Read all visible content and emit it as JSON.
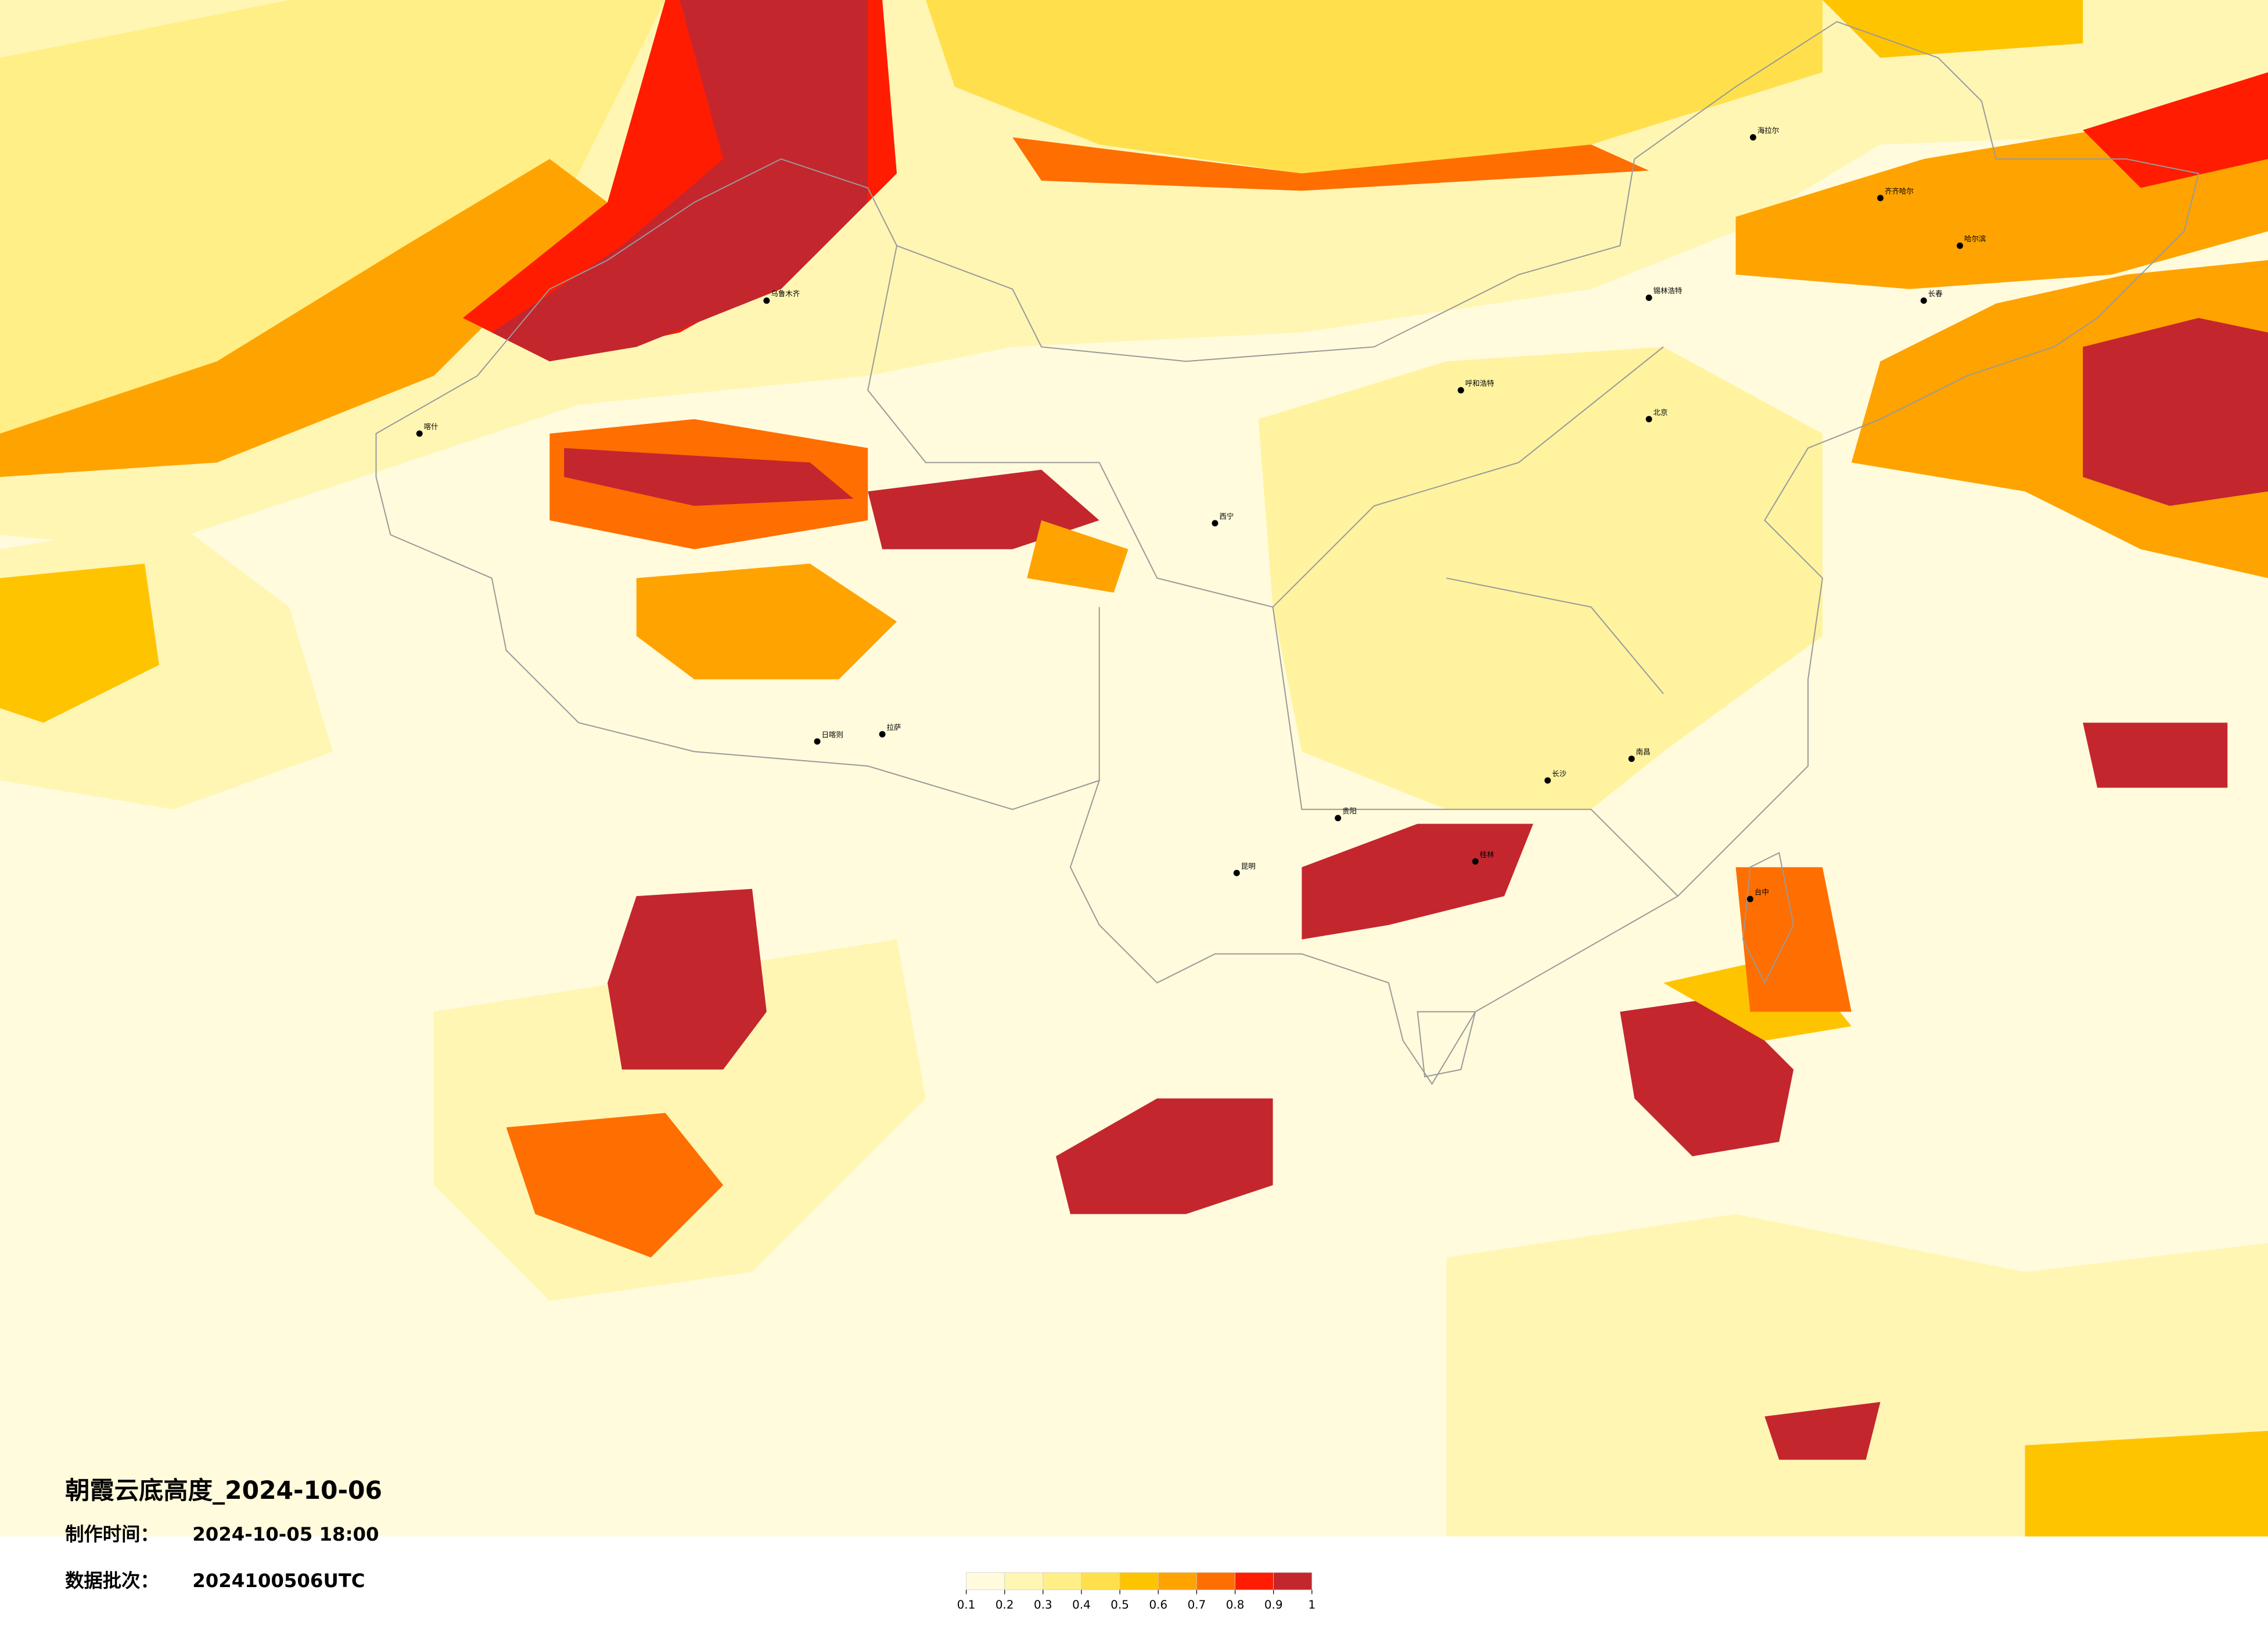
{
  "title": "朝霞云底高度_2024-10-06",
  "made_label": "制作时间：",
  "made_time": "2024-10-05 18:00",
  "batch_label": "数据批次：",
  "batch": "2024100506UTC",
  "colorbar": {
    "ticks": [
      0.1,
      0.2,
      0.3,
      0.4,
      0.5,
      0.6,
      0.7,
      0.8,
      0.9,
      1
    ],
    "colors": [
      "#fffbdc",
      "#fff6b4",
      "#ffef86",
      "#ffe04c",
      "#ffc400",
      "#ffa300",
      "#ff6e00",
      "#ff1c00",
      "#c4262e"
    ]
  },
  "cities": [
    "乌鲁木齐",
    "喀什",
    "海拉尔",
    "齐齐哈尔",
    "哈尔滨",
    "长春",
    "锡林浩特",
    "呼和浩特",
    "北京",
    "西宁",
    "拉萨",
    "日喀则",
    "昆明",
    "贵阳",
    "桂林",
    "长沙",
    "南昌",
    "台中"
  ]
}
